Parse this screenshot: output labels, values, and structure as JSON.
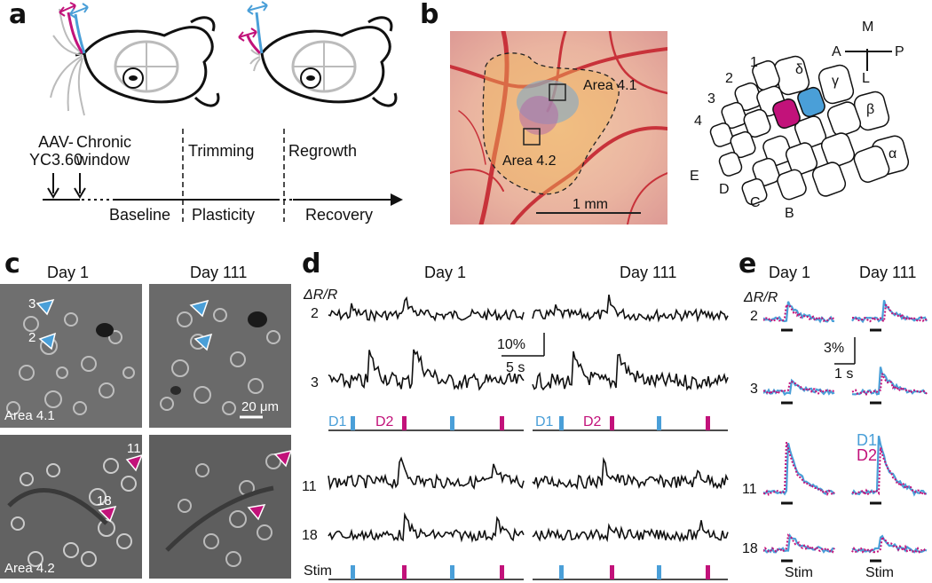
{
  "panel_a": {
    "label": "a",
    "aav_line1": "AAV-",
    "aav_line2": "YC3.60",
    "chronic_line1": "Chronic",
    "chronic_line2": "window",
    "trimming": "Trimming",
    "regrowth": "Regrowth",
    "baseline": "Baseline",
    "plasticity": "Plasticity",
    "recovery": "Recovery",
    "colors": {
      "magenta": "#c2127a",
      "blue": "#4a9fd8"
    }
  },
  "panel_b": {
    "label": "b",
    "area1": "Area 4.1",
    "area2": "Area 4.2",
    "scalebar": "1 mm",
    "compass": {
      "M": "M",
      "A": "A",
      "P": "P",
      "L": "L"
    },
    "rows": [
      "1",
      "2",
      "3",
      "4"
    ],
    "arcs": [
      "E",
      "D",
      "C",
      "B"
    ],
    "greek": [
      "δ",
      "γ",
      "β",
      "α"
    ]
  },
  "panel_c": {
    "label": "c",
    "day1": "Day 1",
    "day111": "Day 111",
    "cell_labels": [
      "3",
      "2",
      "11",
      "18"
    ],
    "area1": "Area 4.1",
    "area2": "Area 4.2",
    "scalebar": "20 μm"
  },
  "panel_d": {
    "label": "d",
    "day1": "Day 1",
    "day111": "Day 111",
    "ylabel": "ΔR/R",
    "row_labels": [
      "2",
      "3",
      "11",
      "18"
    ],
    "scale_y": "10%",
    "scale_x": "5 s",
    "d1": "D1",
    "d2": "D2",
    "stim": "Stim"
  },
  "panel_e": {
    "label": "e",
    "day1": "Day 1",
    "day111": "Day 111",
    "ylabel": "ΔR/R",
    "row_labels": [
      "2",
      "3",
      "11",
      "18"
    ],
    "scale_y": "3%",
    "scale_x": "1 s",
    "d1": "D1",
    "d2": "D2",
    "stim1": "Stim",
    "stim2": "Stim"
  }
}
